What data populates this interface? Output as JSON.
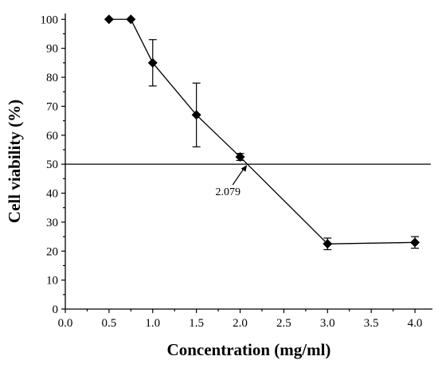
{
  "chart_data": {
    "type": "line",
    "xlabel": "Concentration (mg/ml)",
    "ylabel": "Cell viability (%)",
    "xlim": [
      0,
      4.2
    ],
    "ylim": [
      0,
      102
    ],
    "x_ticks": [
      "0.0",
      "0.5",
      "1.0",
      "1.5",
      "2.0",
      "2.5",
      "3.0",
      "3.5",
      "4.0"
    ],
    "y_ticks": [
      "0",
      "10",
      "20",
      "30",
      "40",
      "50",
      "60",
      "70",
      "80",
      "90",
      "100"
    ],
    "grid": false,
    "marker": "diamond",
    "series": [
      {
        "x": [
          0.5,
          0.75,
          1.0,
          1.5,
          2.0,
          3.0,
          4.0
        ],
        "y": [
          100,
          100,
          85,
          67,
          52.5,
          22.5,
          23
        ],
        "err": [
          0,
          0,
          8,
          11,
          1.2,
          2,
          2
        ]
      }
    ],
    "reference_line": {
      "y": 50
    },
    "annotation": {
      "text": "2.079",
      "x": 2.079,
      "y": 50
    }
  }
}
